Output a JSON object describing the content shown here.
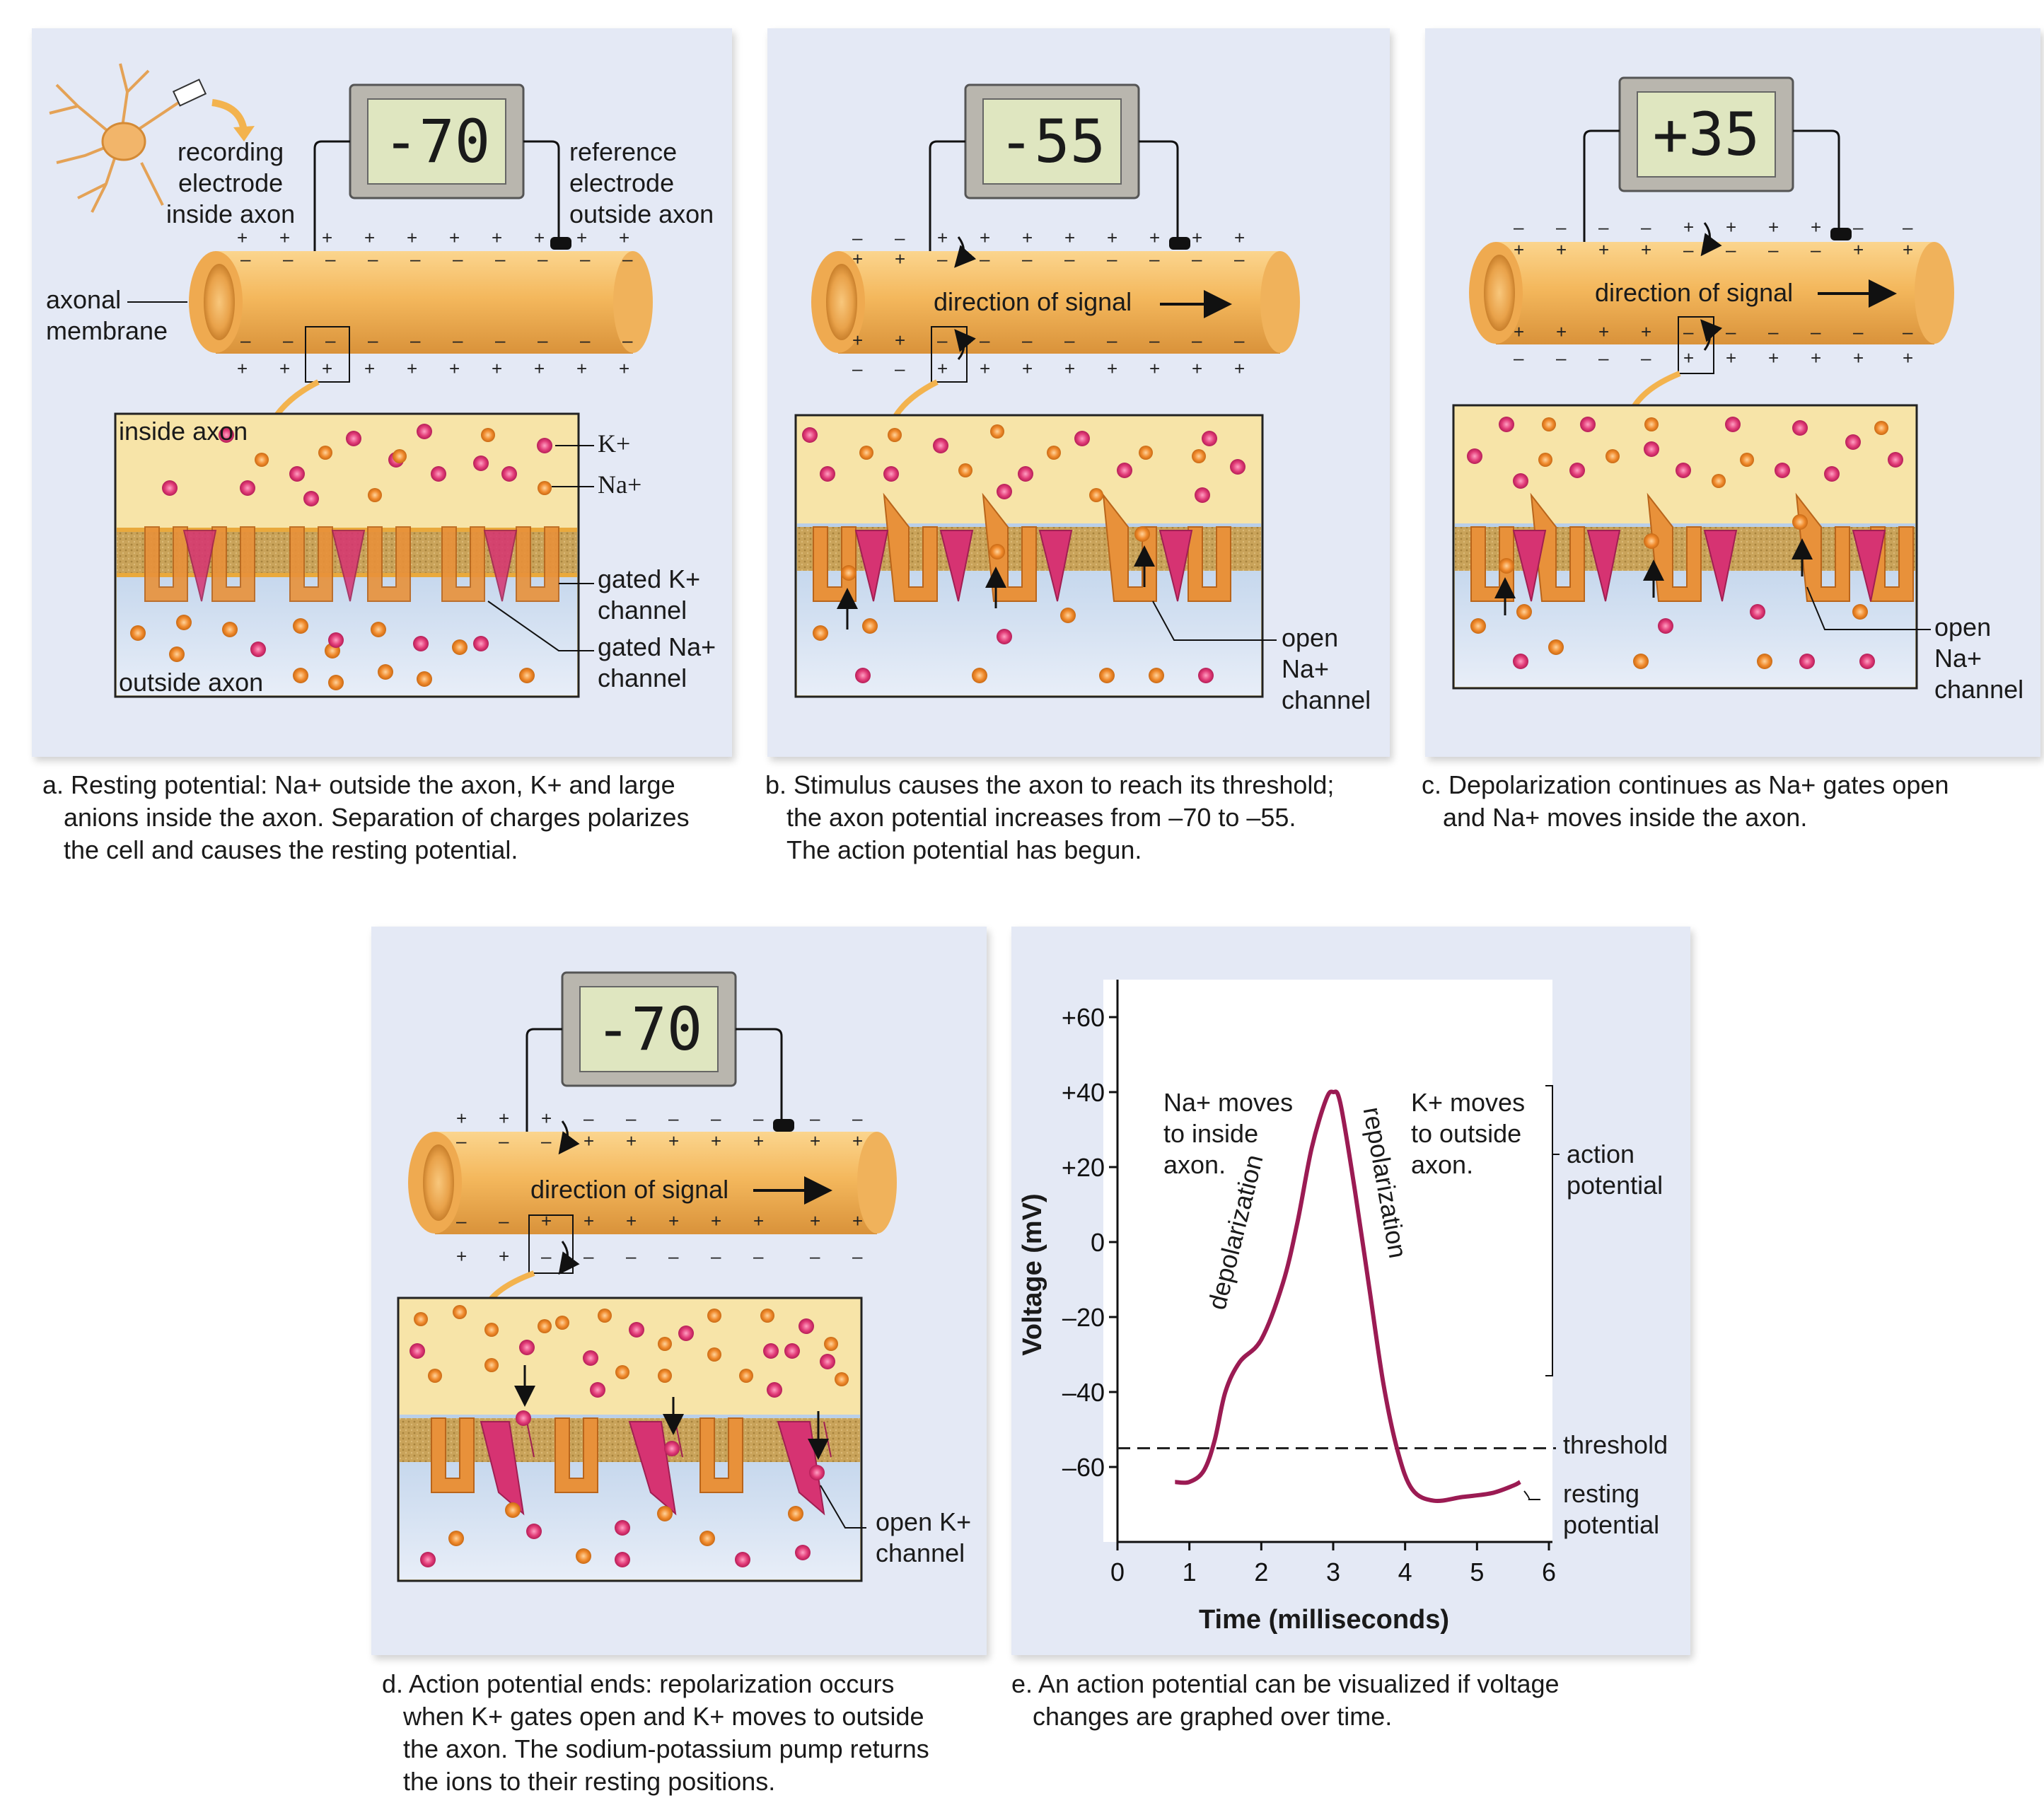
{
  "panels": {
    "a": {
      "meter": "-70",
      "labels": {
        "recording_electrode": [
          "recording",
          "electrode",
          "inside axon"
        ],
        "reference_electrode": [
          "reference",
          "electrode",
          "outside axon"
        ],
        "axonal_membrane": [
          "axonal",
          "membrane"
        ],
        "inside_axon": "inside axon",
        "outside_axon": "outside axon",
        "k_ion": "K+",
        "na_ion": "Na+",
        "gated_k_channel": [
          "gated K+",
          "channel"
        ],
        "gated_na_channel": [
          "gated Na+",
          "channel"
        ]
      },
      "caption": [
        "a. Resting potential: Na+ outside the axon, K+ and large",
        "anions inside the axon. Separation of charges polarizes",
        "the cell and causes the resting potential."
      ]
    },
    "b": {
      "meter": "-55",
      "labels": {
        "direction": "direction of signal",
        "open_na_channel": [
          "open",
          "Na+",
          "channel"
        ]
      },
      "caption": [
        "b. Stimulus causes the axon to reach its threshold;",
        "the axon potential increases from –70 to –55.",
        "The action potential has begun."
      ]
    },
    "c": {
      "meter": "+35",
      "labels": {
        "direction": "direction of signal",
        "open_na_channel": [
          "open",
          "Na+",
          "channel"
        ]
      },
      "caption": [
        "c. Depolarization continues as Na+ gates open",
        "and Na+ moves inside the axon."
      ]
    },
    "d": {
      "meter": "-70",
      "labels": {
        "direction": "direction of signal",
        "open_k_channel": [
          "open K+",
          "channel"
        ]
      },
      "caption": [
        "d. Action potential ends: repolarization occurs",
        "when  K+ gates open and K+ moves to outside",
        "the axon. The sodium-potassium pump returns",
        "the ions to their resting positions."
      ]
    },
    "e": {
      "caption": [
        "e. An action potential can be visualized if voltage",
        "changes are graphed over time."
      ]
    }
  },
  "chart_data": {
    "type": "line",
    "xlabel": "Time (milliseconds)",
    "ylabel": "Voltage (mV)",
    "xlim": [
      0,
      6
    ],
    "ylim": [
      -80,
      70
    ],
    "x_ticks": [
      "0",
      "1",
      "2",
      "3",
      "4",
      "5",
      "6"
    ],
    "y_ticks": [
      "+60",
      "+40",
      "+20",
      "0",
      "–20",
      "–40",
      "–60"
    ],
    "series": [
      {
        "x": [
          0.8,
          1.0,
          1.2,
          1.35,
          1.5,
          1.7,
          2.0,
          2.3,
          2.5,
          2.7,
          2.9,
          3.0,
          3.1,
          3.3,
          3.5,
          3.7,
          3.9,
          4.1,
          4.4,
          4.8,
          5.2,
          5.5,
          5.6
        ],
        "y": [
          -64,
          -64,
          -61,
          -53,
          -40,
          -32,
          -26,
          -11,
          5,
          25,
          38,
          40,
          37,
          14,
          -12,
          -38,
          -56,
          -66,
          -69,
          -68,
          -67,
          -65,
          -64
        ]
      }
    ],
    "threshold": -55,
    "annotations": {
      "threshold": "threshold",
      "resting_potential": [
        "resting",
        "potential"
      ],
      "action_potential": [
        "action",
        "potential"
      ],
      "depolarization": "depolarization",
      "repolarization": "repolarization",
      "na_moves": [
        "Na+ moves",
        "to inside",
        "axon."
      ],
      "k_moves": [
        "K+ moves",
        "to outside",
        "axon."
      ]
    },
    "colors": {
      "line": "#9b1b53",
      "threshold": "#222222"
    },
    "grid": false
  },
  "colors": {
    "panel_bg": "#e4e9f5",
    "axon": "#f2bd6c",
    "cytoplasm": "#f7e4a8",
    "k_ion": "#e23c78",
    "na_ion": "#f08a2c"
  }
}
